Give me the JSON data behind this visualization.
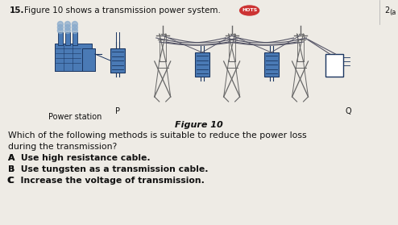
{
  "bg_color": "#eeebe5",
  "question_number": "15.",
  "question_text": "Figure 10 shows a transmission power system.",
  "hots_label": "HOTS",
  "figure_caption": "Figure 10",
  "figure_label_p": "P",
  "figure_label_q": "Q",
  "figure_label_power": "Power station",
  "mcq_question_line1": "Which of the following methods is suitable to reduce the power loss",
  "mcq_question_line2": "during the transmission?",
  "option_a": "A  Use high resistance cable.",
  "option_b": "B  Use tungsten as a transmission cable.",
  "option_c": "C  Increase the voltage of transmission.",
  "text_color": "#111111",
  "blue_color": "#4a7ab5",
  "dark_blue": "#1a3560",
  "wire_color": "#555566",
  "pylon_color": "#666666",
  "box_q_color": "#ffffff"
}
